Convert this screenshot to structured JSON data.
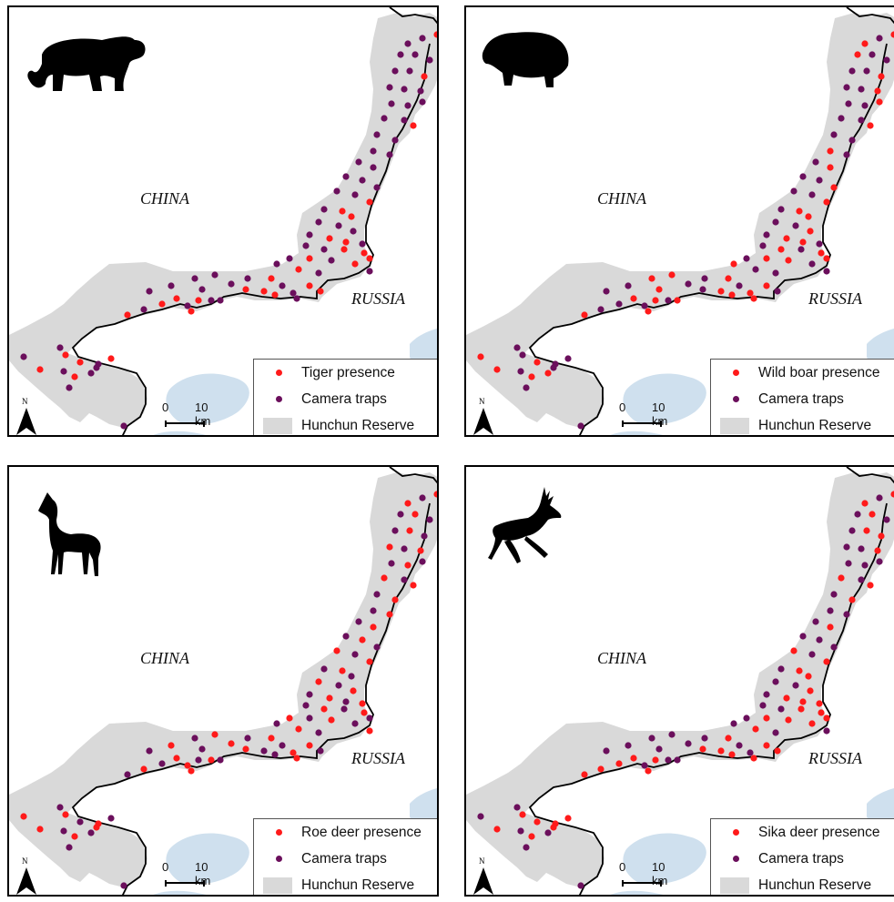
{
  "colors": {
    "presence": "#ff1a1a",
    "traps": "#6b0f5c",
    "reserve": "#d9d9d9",
    "water": "#cfe0ee"
  },
  "labels": {
    "china": "CHINA",
    "russia": "RUSSIA"
  },
  "scale": {
    "zero": "0",
    "km": "10 km"
  },
  "north": "N",
  "legend_common": {
    "traps": "Camera traps",
    "reserve": "Hunchun Reserve"
  },
  "panels": [
    {
      "id": "tiger",
      "presence_label": "Tiger presence",
      "icon": "tiger-icon"
    },
    {
      "id": "wildboar",
      "presence_label": "Wild boar presence",
      "icon": "wild-boar-icon"
    },
    {
      "id": "roedeer",
      "presence_label": "Roe deer presence",
      "icon": "roe-deer-icon"
    },
    {
      "id": "sikadeer",
      "presence_label": "Sika deer presence",
      "icon": "sika-deer-icon"
    }
  ]
}
